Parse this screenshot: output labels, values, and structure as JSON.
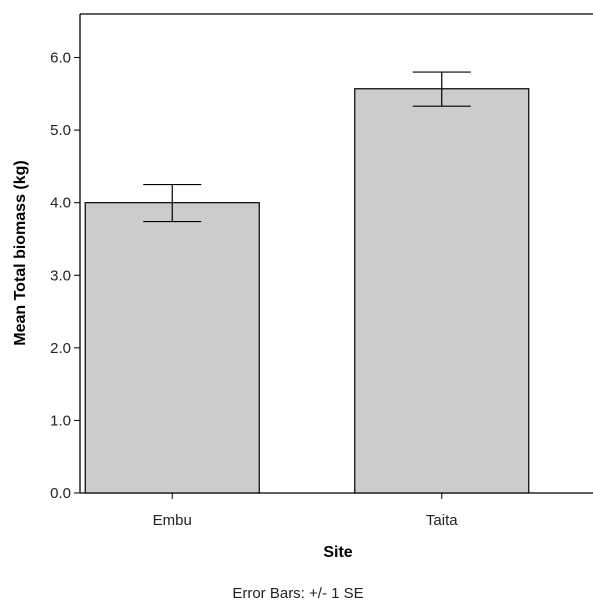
{
  "chart_data": {
    "type": "bar",
    "categories": [
      "Embu",
      "Taita"
    ],
    "values": [
      4.0,
      5.57
    ],
    "error_bars": {
      "type": "+/- 1 SE",
      "lower": [
        3.74,
        5.33
      ],
      "upper": [
        4.25,
        5.8
      ]
    },
    "title": "",
    "xlabel": "Site",
    "ylabel": "Mean Total biomass (kg)",
    "ylim": [
      0,
      6.6
    ],
    "yticks": [
      0.0,
      1.0,
      2.0,
      3.0,
      4.0,
      5.0,
      6.0
    ],
    "ytick_labels": [
      "0.0",
      "1.0",
      "2.0",
      "3.0",
      "4.0",
      "5.0",
      "6.0"
    ],
    "grid": false,
    "legend": "none",
    "bar_color": "#cccccc",
    "bar_edge_color": "#000000",
    "footnote": "Error Bars: +/- 1 SE"
  }
}
